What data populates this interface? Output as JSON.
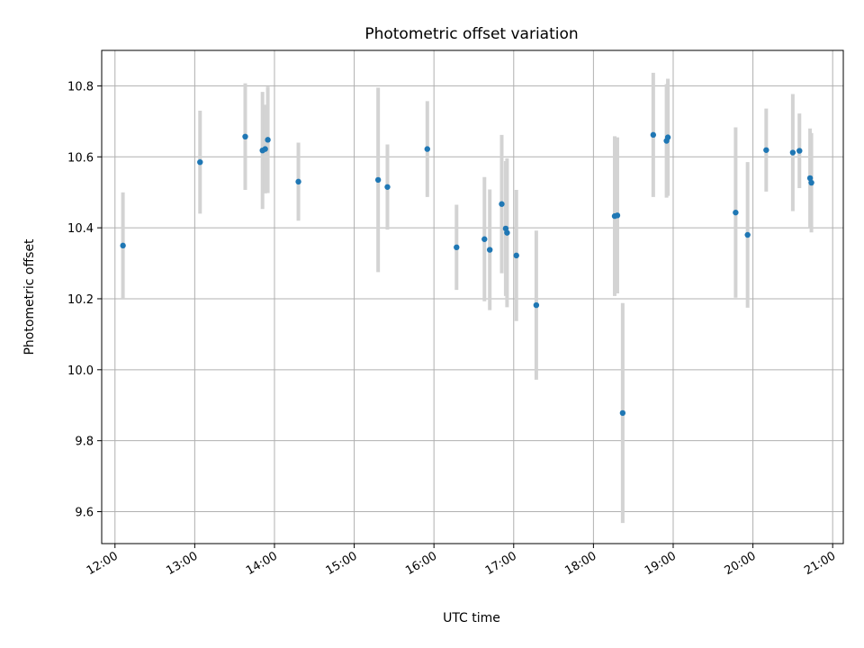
{
  "chart_data": {
    "type": "scatter",
    "title": "Photometric offset variation",
    "xlabel": "UTC time",
    "ylabel": "Photometric offset",
    "xlim": [
      "11:50",
      "21:08"
    ],
    "ylim": [
      9.51,
      10.9
    ],
    "grid": true,
    "x_ticks": [
      "12:00",
      "13:00",
      "14:00",
      "15:00",
      "16:00",
      "17:00",
      "18:00",
      "19:00",
      "20:00",
      "21:00"
    ],
    "y_ticks": [
      "9.6",
      "9.8",
      "10.0",
      "10.2",
      "10.4",
      "10.6",
      "10.8"
    ],
    "colors": {
      "points": "#1f77b4",
      "error_bars": "#d3d3d3",
      "grid": "#b0b0b0"
    },
    "series": [
      {
        "points": [
          {
            "x": "12:06",
            "y": 10.35,
            "yerr": 0.15
          },
          {
            "x": "13:04",
            "y": 10.585,
            "yerr": 0.145
          },
          {
            "x": "13:38",
            "y": 10.657,
            "yerr": 0.15
          },
          {
            "x": "13:51",
            "y": 10.618,
            "yerr": 0.165
          },
          {
            "x": "13:53",
            "y": 10.622,
            "yerr": 0.125
          },
          {
            "x": "13:55",
            "y": 10.648,
            "yerr": 0.15
          },
          {
            "x": "14:18",
            "y": 10.53,
            "yerr": 0.11
          },
          {
            "x": "15:18",
            "y": 10.535,
            "yerr": 0.26
          },
          {
            "x": "15:25",
            "y": 10.515,
            "yerr": 0.12
          },
          {
            "x": "15:55",
            "y": 10.622,
            "yerr": 0.135
          },
          {
            "x": "16:17",
            "y": 10.345,
            "yerr": 0.12
          },
          {
            "x": "16:38",
            "y": 10.368,
            "yerr": 0.175
          },
          {
            "x": "16:42",
            "y": 10.338,
            "yerr": 0.17
          },
          {
            "x": "16:51",
            "y": 10.467,
            "yerr": 0.195
          },
          {
            "x": "16:54",
            "y": 10.398,
            "yerr": 0.19
          },
          {
            "x": "16:55",
            "y": 10.386,
            "yerr": 0.21
          },
          {
            "x": "17:02",
            "y": 10.322,
            "yerr": 0.185
          },
          {
            "x": "17:17",
            "y": 10.182,
            "yerr": 0.21
          },
          {
            "x": "18:16",
            "y": 10.433,
            "yerr": 0.225
          },
          {
            "x": "18:18",
            "y": 10.435,
            "yerr": 0.22
          },
          {
            "x": "18:22",
            "y": 9.878,
            "yerr": 0.31
          },
          {
            "x": "18:45",
            "y": 10.662,
            "yerr": 0.175
          },
          {
            "x": "18:55",
            "y": 10.645,
            "yerr": 0.16
          },
          {
            "x": "18:56",
            "y": 10.655,
            "yerr": 0.165
          },
          {
            "x": "19:47",
            "y": 10.443,
            "yerr": 0.24
          },
          {
            "x": "19:56",
            "y": 10.38,
            "yerr": 0.205
          },
          {
            "x": "20:10",
            "y": 10.619,
            "yerr": 0.117
          },
          {
            "x": "20:30",
            "y": 10.612,
            "yerr": 0.165
          },
          {
            "x": "20:35",
            "y": 10.617,
            "yerr": 0.105
          },
          {
            "x": "20:43",
            "y": 10.54,
            "yerr": 0.14
          },
          {
            "x": "20:44",
            "y": 10.527,
            "yerr": 0.14
          }
        ]
      }
    ]
  }
}
